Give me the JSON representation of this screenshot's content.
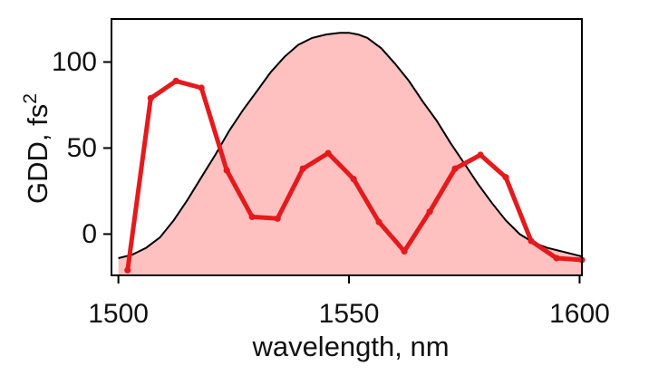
{
  "chart_data": {
    "type": "line",
    "title": "",
    "xlabel": "wavelength, nm",
    "ylabel": "GDD, fs",
    "ylabel_superscript": "2",
    "xlim": [
      1498.5,
      1600.5
    ],
    "ylim": [
      -24,
      125
    ],
    "xticks": [
      1500,
      1550,
      1600
    ],
    "yticks": [
      0,
      50,
      100
    ],
    "grid": false,
    "legend": "none",
    "colors": {
      "gdd_line": "#e41a1c",
      "spectrum_fill": "#ffc0c0",
      "spectrum_line": "#000000",
      "axes": "#000000"
    },
    "series": [
      {
        "kind": "area",
        "x": [
          1500,
          1503,
          1506,
          1509,
          1512,
          1515,
          1518,
          1521,
          1524,
          1527,
          1530,
          1533,
          1536,
          1539,
          1542,
          1545,
          1548,
          1550,
          1552,
          1554,
          1557,
          1560,
          1563,
          1566,
          1569,
          1572,
          1575,
          1578,
          1581,
          1584,
          1587,
          1590,
          1593,
          1596,
          1599,
          1600.5
        ],
        "values": [
          -14,
          -12,
          -8,
          -2,
          8,
          20,
          33,
          46,
          60,
          72,
          83,
          94,
          103,
          110,
          114,
          116,
          117,
          117,
          116,
          114,
          108,
          99,
          89,
          77,
          66,
          53,
          41,
          29,
          18,
          8,
          0,
          -5,
          -8,
          -10,
          -12,
          -13
        ]
      },
      {
        "kind": "line",
        "x": [
          1502,
          1507,
          1512.5,
          1518,
          1523.5,
          1529,
          1534.5,
          1540,
          1545.5,
          1551,
          1556.5,
          1562,
          1567.5,
          1573,
          1578.5,
          1584,
          1589.5,
          1595,
          1600.5
        ],
        "values": [
          -21,
          79,
          89,
          85,
          37,
          10,
          9,
          38,
          47,
          32,
          7,
          -10,
          13,
          38,
          46,
          33,
          -4,
          -14,
          -15
        ]
      }
    ]
  }
}
